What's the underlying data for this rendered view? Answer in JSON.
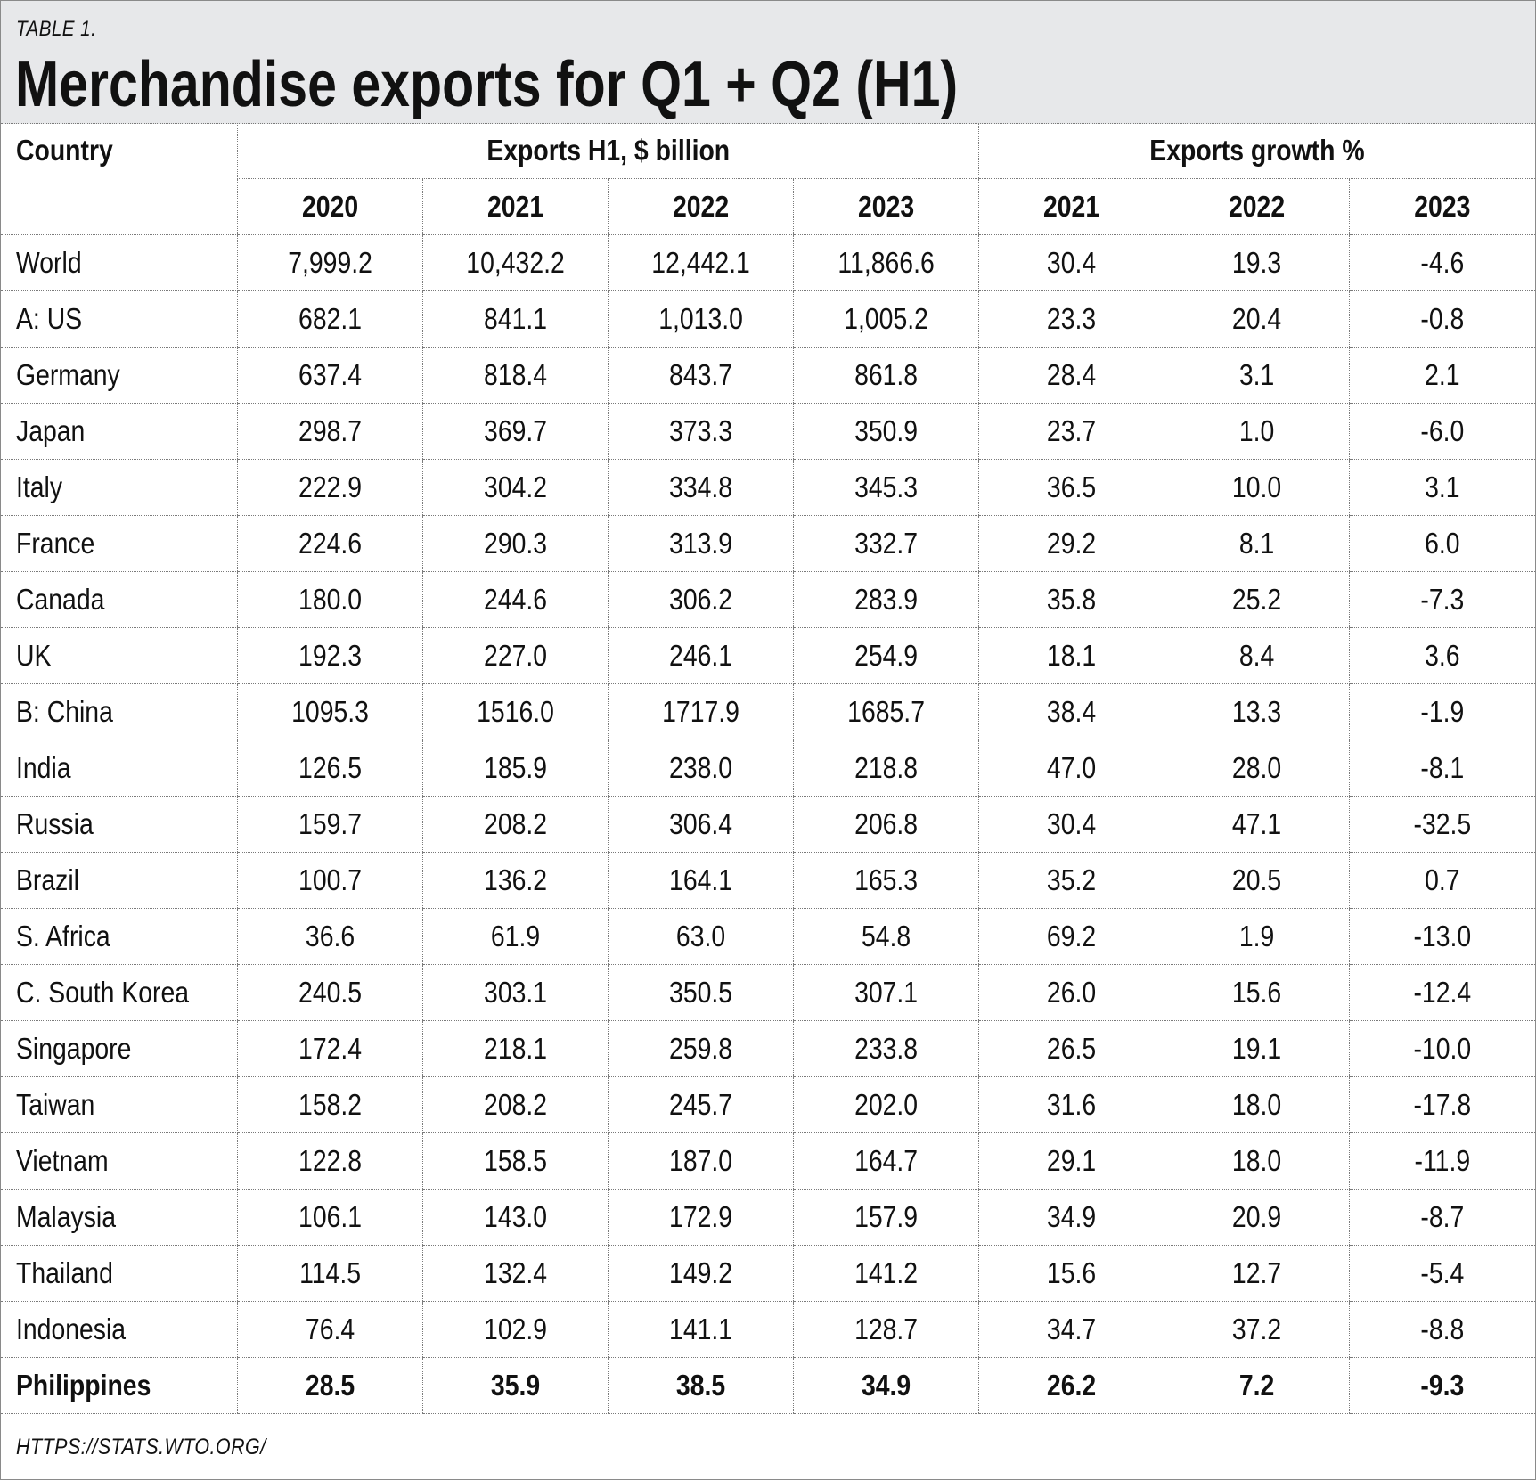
{
  "header": {
    "label": "TABLE 1.",
    "title": "Merchandise exports for Q1 + Q2 (H1)"
  },
  "table": {
    "country_header": "Country",
    "group_exports": "Exports H1, $ billion",
    "group_growth": "Exports growth %",
    "export_years": [
      "2020",
      "2021",
      "2022",
      "2023"
    ],
    "growth_years": [
      "2021",
      "2022",
      "2023"
    ],
    "rows": [
      {
        "country": "World",
        "values": [
          "7,999.2",
          "10,432.2",
          "12,442.1",
          "11,866.6",
          "30.4",
          "19.3",
          "-4.6"
        ]
      },
      {
        "country": "A: US",
        "values": [
          "682.1",
          "841.1",
          "1,013.0",
          "1,005.2",
          "23.3",
          "20.4",
          "-0.8"
        ]
      },
      {
        "country": "Germany",
        "values": [
          "637.4",
          "818.4",
          "843.7",
          "861.8",
          "28.4",
          "3.1",
          "2.1"
        ]
      },
      {
        "country": "Japan",
        "values": [
          "298.7",
          "369.7",
          "373.3",
          "350.9",
          "23.7",
          "1.0",
          "-6.0"
        ]
      },
      {
        "country": "Italy",
        "values": [
          "222.9",
          "304.2",
          "334.8",
          "345.3",
          "36.5",
          "10.0",
          "3.1"
        ]
      },
      {
        "country": "France",
        "values": [
          "224.6",
          "290.3",
          "313.9",
          "332.7",
          "29.2",
          "8.1",
          "6.0"
        ]
      },
      {
        "country": "Canada",
        "values": [
          "180.0",
          "244.6",
          "306.2",
          "283.9",
          "35.8",
          "25.2",
          "-7.3"
        ]
      },
      {
        "country": "UK",
        "values": [
          "192.3",
          "227.0",
          "246.1",
          "254.9",
          "18.1",
          "8.4",
          "3.6"
        ]
      },
      {
        "country": "B: China",
        "values": [
          "1095.3",
          "1516.0",
          "1717.9",
          "1685.7",
          "38.4",
          "13.3",
          "-1.9"
        ]
      },
      {
        "country": "India",
        "values": [
          "126.5",
          "185.9",
          "238.0",
          "218.8",
          "47.0",
          "28.0",
          "-8.1"
        ]
      },
      {
        "country": "Russia",
        "values": [
          "159.7",
          "208.2",
          "306.4",
          "206.8",
          "30.4",
          "47.1",
          "-32.5"
        ]
      },
      {
        "country": "Brazil",
        "values": [
          "100.7",
          "136.2",
          "164.1",
          "165.3",
          "35.2",
          "20.5",
          "0.7"
        ]
      },
      {
        "country": "S. Africa",
        "values": [
          "36.6",
          "61.9",
          "63.0",
          "54.8",
          "69.2",
          "1.9",
          "-13.0"
        ]
      },
      {
        "country": "C. South Korea",
        "values": [
          "240.5",
          "303.1",
          "350.5",
          "307.1",
          "26.0",
          "15.6",
          "-12.4"
        ]
      },
      {
        "country": "Singapore",
        "values": [
          "172.4",
          "218.1",
          "259.8",
          "233.8",
          "26.5",
          "19.1",
          "-10.0"
        ]
      },
      {
        "country": "Taiwan",
        "values": [
          "158.2",
          "208.2",
          "245.7",
          "202.0",
          "31.6",
          "18.0",
          "-17.8"
        ]
      },
      {
        "country": "Vietnam",
        "values": [
          "122.8",
          "158.5",
          "187.0",
          "164.7",
          "29.1",
          "18.0",
          "-11.9"
        ]
      },
      {
        "country": "Malaysia",
        "values": [
          "106.1",
          "143.0",
          "172.9",
          "157.9",
          "34.9",
          "20.9",
          "-8.7"
        ]
      },
      {
        "country": "Thailand",
        "values": [
          "114.5",
          "132.4",
          "149.2",
          "141.2",
          "15.6",
          "12.7",
          "-5.4"
        ]
      },
      {
        "country": "Indonesia",
        "values": [
          "76.4",
          "102.9",
          "141.1",
          "128.7",
          "34.7",
          "37.2",
          "-8.8"
        ]
      },
      {
        "country": "Philippines",
        "values": [
          "28.5",
          "35.9",
          "38.5",
          "34.9",
          "26.2",
          "7.2",
          "-9.3"
        ]
      }
    ]
  },
  "footer": {
    "source": "HTTPS://STATS.WTO.ORG/"
  }
}
